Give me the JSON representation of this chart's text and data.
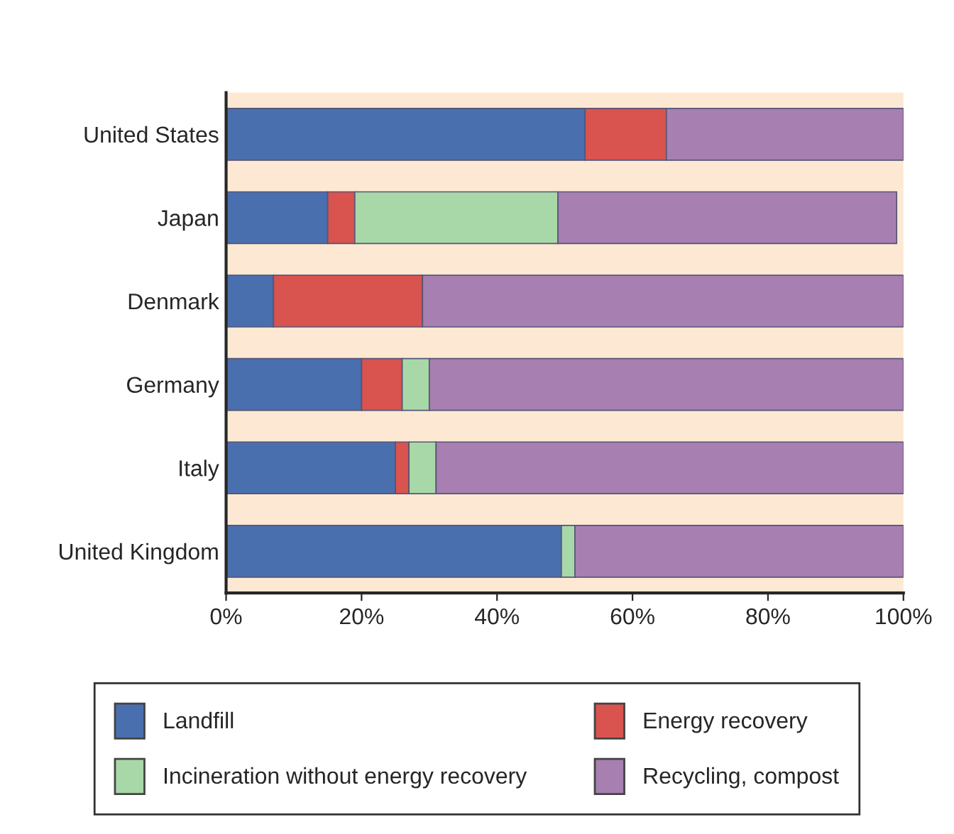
{
  "chart_data": {
    "type": "bar",
    "orientation": "horizontal",
    "stacked": true,
    "categories": [
      "United States",
      "Japan",
      "Denmark",
      "Germany",
      "Italy",
      "United Kingdom"
    ],
    "series": [
      {
        "name": "Landfill",
        "color": "#4a6fae",
        "values": [
          53,
          15,
          7,
          20,
          25,
          49.5
        ]
      },
      {
        "name": "Energy recovery",
        "color": "#d9534f",
        "values": [
          12,
          4,
          22,
          6,
          2,
          0
        ]
      },
      {
        "name": "Incineration without energy recovery",
        "color": "#a8d8a8",
        "values": [
          0,
          30,
          0,
          4,
          4,
          2
        ]
      },
      {
        "name": "Recycling, compost",
        "color": "#a77fb0",
        "values": [
          35,
          50,
          71,
          70,
          69,
          48.5
        ]
      }
    ],
    "xlim": [
      0,
      100
    ],
    "xticks": [
      {
        "value": 0,
        "label": "0%"
      },
      {
        "value": 20,
        "label": "20%"
      },
      {
        "value": 40,
        "label": "40%"
      },
      {
        "value": 60,
        "label": "60%"
      },
      {
        "value": 80,
        "label": "80%"
      },
      {
        "value": 100,
        "label": "100%"
      }
    ],
    "grid": false,
    "legend": "bottom"
  }
}
